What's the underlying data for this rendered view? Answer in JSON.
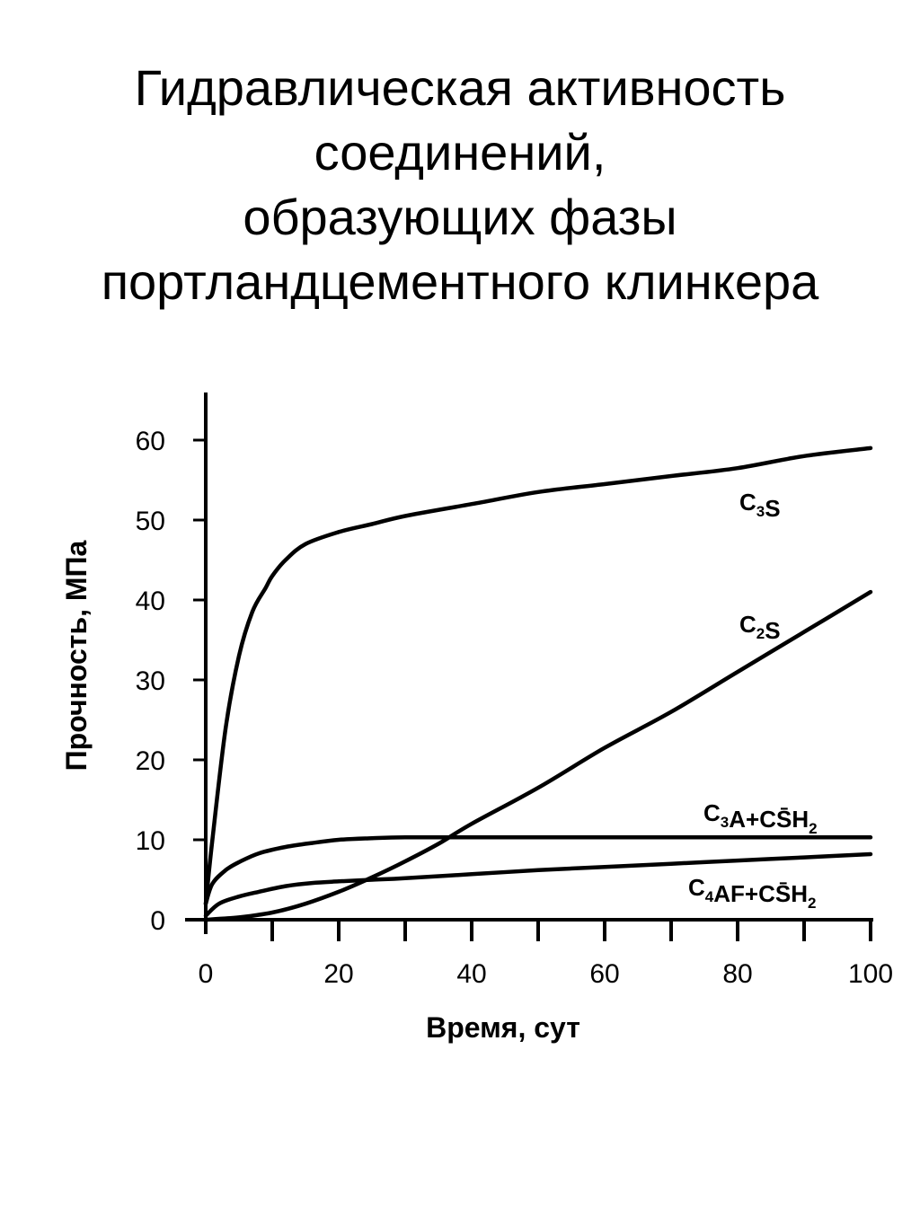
{
  "title_lines": [
    "Гидравлическая активность",
    "соединений,",
    "образующих фазы",
    "портландцементного клинкера"
  ],
  "chart_data": {
    "type": "line",
    "xlabel": "Время, сут",
    "ylabel": "Прочность, МПа",
    "xlim": [
      0,
      100
    ],
    "ylim": [
      0,
      60
    ],
    "x_ticks": [
      0,
      20,
      40,
      60,
      80,
      100
    ],
    "y_ticks": [
      0,
      10,
      20,
      30,
      40,
      50,
      60
    ],
    "x_minor_ticks": [
      10,
      30,
      50,
      70,
      90
    ],
    "grid": false,
    "series": [
      {
        "name": "C3S",
        "label_parts": [
          [
            "C",
            ""
          ],
          [
            "3",
            "sub"
          ],
          [
            "S",
            ""
          ]
        ],
        "x": [
          0,
          1,
          3,
          5,
          7,
          9,
          10,
          12,
          15,
          20,
          25,
          30,
          40,
          50,
          60,
          70,
          80,
          90,
          100
        ],
        "y": [
          2,
          10,
          24,
          33,
          38.5,
          41.5,
          43,
          45,
          47,
          48.5,
          49.5,
          50.5,
          52,
          53.5,
          54.5,
          55.5,
          56.5,
          58,
          59
        ]
      },
      {
        "name": "C2S",
        "label_parts": [
          [
            "C",
            ""
          ],
          [
            "2",
            "sub"
          ],
          [
            "S",
            ""
          ]
        ],
        "x": [
          0,
          5,
          10,
          15,
          20,
          25,
          30,
          35,
          40,
          50,
          60,
          70,
          80,
          90,
          100
        ],
        "y": [
          0,
          0.3,
          0.9,
          2,
          3.5,
          5.3,
          7.3,
          9.5,
          12,
          16.5,
          21.5,
          26,
          31,
          36,
          41
        ]
      },
      {
        "name": "C3A+CS̄H2",
        "label_parts": [
          [
            "C",
            ""
          ],
          [
            "3",
            "sub"
          ],
          [
            "A+CS̄H",
            ""
          ],
          [
            "2",
            "sub"
          ]
        ],
        "x": [
          0,
          1,
          3,
          5,
          8,
          12,
          16,
          20,
          25,
          30,
          40,
          50,
          60,
          70,
          80,
          90,
          100
        ],
        "y": [
          2,
          4.5,
          6.2,
          7.2,
          8.3,
          9.1,
          9.6,
          10,
          10.2,
          10.3,
          10.3,
          10.3,
          10.3,
          10.3,
          10.3,
          10.3,
          10.3
        ]
      },
      {
        "name": "C4AF+CS̄H2",
        "label_parts": [
          [
            "C",
            ""
          ],
          [
            "4",
            "sub"
          ],
          [
            "AF+CS̄H",
            ""
          ],
          [
            "2",
            "sub"
          ]
        ],
        "x": [
          0,
          2,
          5,
          8,
          12,
          16,
          20,
          25,
          30,
          40,
          50,
          60,
          70,
          80,
          90,
          100
        ],
        "y": [
          0.5,
          2,
          2.9,
          3.5,
          4.2,
          4.6,
          4.8,
          5,
          5.2,
          5.7,
          6.2,
          6.6,
          7,
          7.4,
          7.8,
          8.2
        ]
      }
    ]
  }
}
